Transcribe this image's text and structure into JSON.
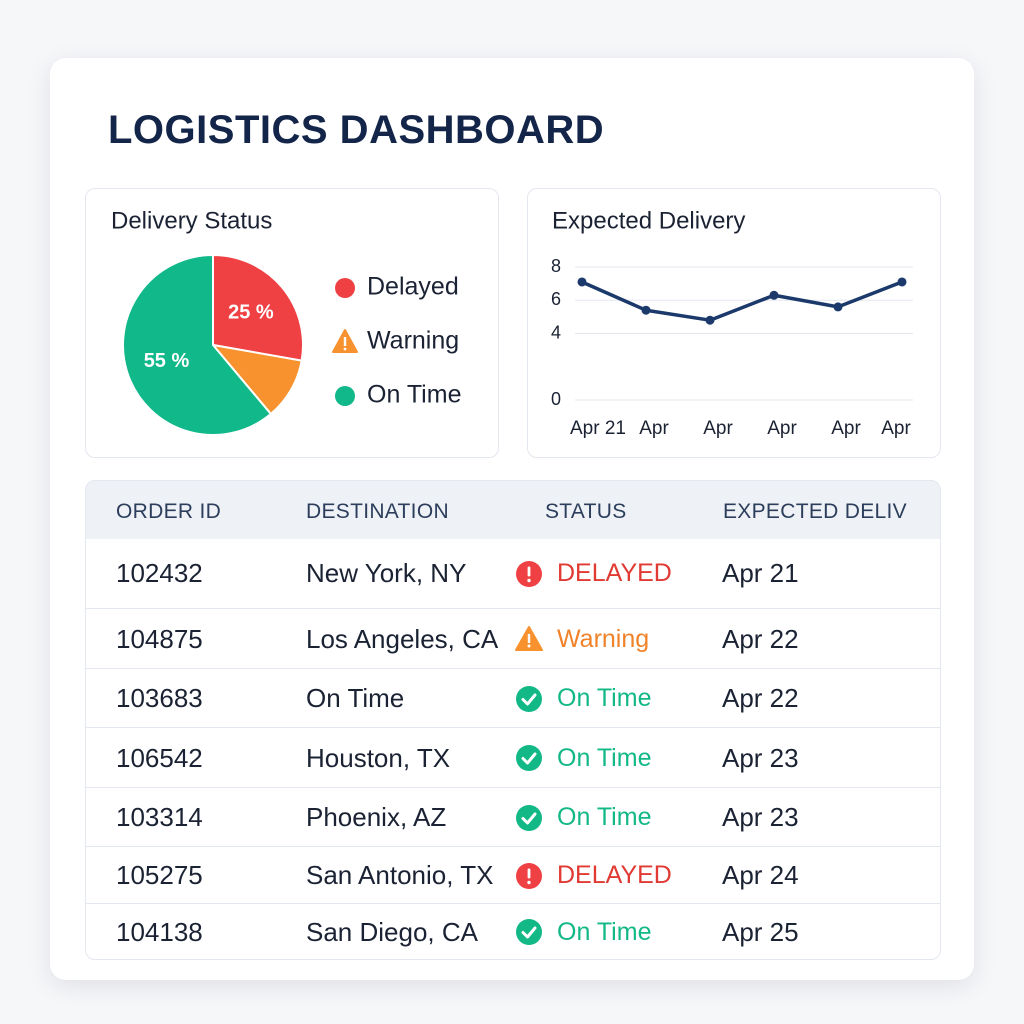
{
  "header": {
    "title": "LOGISTICS DASHBOARD"
  },
  "chart_data": [
    {
      "type": "pie",
      "title": "Delivery Status",
      "categories": [
        "Delayed",
        "Warning",
        "On Time"
      ],
      "values": [
        25,
        10,
        55
      ],
      "value_labels": [
        "25 %",
        null,
        "55 %"
      ],
      "colors": [
        "#ef4144",
        "#f7922e",
        "#10b88a"
      ]
    },
    {
      "type": "line",
      "title": "Expected Delivery",
      "categories": [
        "Apr 21",
        "Apr",
        "Apr",
        "Apr",
        "Apr",
        "Apr"
      ],
      "series": [
        {
          "name": "Expected Delivery",
          "color": "#1b3a6b",
          "values": [
            7.1,
            5.4,
            4.8,
            6.3,
            5.6,
            7.1
          ]
        }
      ],
      "ylim": [
        0,
        8
      ],
      "yticks": [
        0,
        4,
        6,
        8
      ],
      "grid": true
    }
  ],
  "table": {
    "columns": [
      "ORDER ID",
      "DESTINATION",
      "STATUS",
      "EXPECTED DELIV"
    ],
    "rows": [
      [
        "102432",
        "New York, NY",
        "DELAYED",
        "Apr 21"
      ],
      [
        "104875",
        "Los Angeles, CA",
        "Warning",
        "Apr 22"
      ],
      [
        "103683",
        "On Time",
        "On Time",
        "Apr 22"
      ],
      [
        "106542",
        "Houston, TX",
        "On Time",
        "Apr 23"
      ],
      [
        "103314",
        "Phoenix, AZ",
        "On Time",
        "Apr 23"
      ],
      [
        "105275",
        "San Antonio, TX",
        "DELAYED",
        "Apr 24"
      ],
      [
        "104138",
        "San Diego, CA",
        "On Time",
        "Apr 25"
      ]
    ]
  }
}
